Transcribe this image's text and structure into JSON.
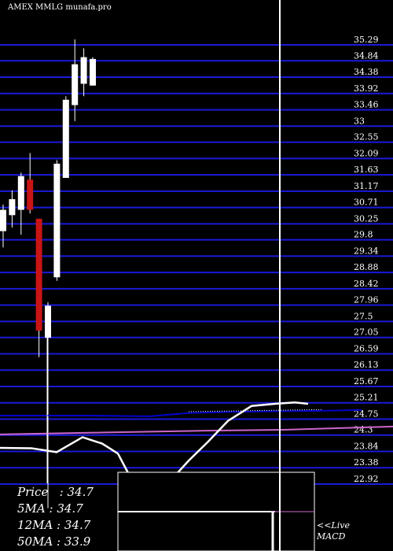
{
  "header": {
    "title": "AMEX  MMLG munafa.pro"
  },
  "chart_data": {
    "type": "candlestick",
    "y_ticks": [
      "35.29",
      "34.84",
      "34.38",
      "33.92",
      "33.46",
      "33",
      "32.55",
      "32.09",
      "31.63",
      "31.17",
      "30.71",
      "30.25",
      "29.8",
      "29.34",
      "28.88",
      "28.42",
      "27.96",
      "27.5",
      "27.05",
      "26.59",
      "26.13",
      "25.67",
      "25.21",
      "24.75",
      "24.3",
      "23.84",
      "23.38",
      "22.92"
    ],
    "ylim": [
      22.92,
      35.29
    ],
    "candles": [
      {
        "o": 29.8,
        "h": 30.55,
        "l": 29.34,
        "c": 30.4,
        "dir": "up"
      },
      {
        "o": 30.25,
        "h": 30.95,
        "l": 29.9,
        "c": 30.7,
        "dir": "up"
      },
      {
        "o": 30.4,
        "h": 31.45,
        "l": 29.7,
        "c": 31.35,
        "dir": "up"
      },
      {
        "o": 31.25,
        "h": 32.0,
        "l": 30.3,
        "c": 30.4,
        "dir": "down"
      },
      {
        "o": 30.15,
        "h": 30.15,
        "l": 26.25,
        "c": 27.0,
        "dir": "down"
      },
      {
        "o": 26.8,
        "h": 27.8,
        "l": 22.0,
        "c": 27.7,
        "dir": "up"
      },
      {
        "o": 28.5,
        "h": 31.8,
        "l": 28.4,
        "c": 31.7,
        "dir": "up"
      },
      {
        "o": 31.3,
        "h": 33.6,
        "l": 31.3,
        "c": 33.5,
        "dir": "up"
      },
      {
        "o": 33.35,
        "h": 35.2,
        "l": 32.9,
        "c": 34.5,
        "dir": "up"
      },
      {
        "o": 33.95,
        "h": 34.95,
        "l": 33.6,
        "c": 34.7,
        "dir": "up"
      },
      {
        "o": 33.9,
        "h": 34.7,
        "l": 33.9,
        "c": 34.65,
        "dir": "up"
      }
    ],
    "ma_lines": [
      {
        "name": "50MA",
        "color": "#0000cc",
        "points": [
          [
            0,
            24.85
          ],
          [
            110,
            24.85
          ],
          [
            190,
            24.83
          ],
          [
            240,
            24.92
          ],
          [
            290,
            24.95
          ],
          [
            350,
            24.97
          ],
          [
            420,
            24.99
          ],
          [
            460,
            25.01
          ]
        ]
      },
      {
        "name": "MA-pink",
        "color": "#cc66cc",
        "points": [
          [
            0,
            24.32
          ],
          [
            100,
            24.36
          ],
          [
            250,
            24.42
          ],
          [
            360,
            24.45
          ],
          [
            500,
            24.54
          ]
        ]
      }
    ],
    "macd_line": {
      "color": "#ffffff",
      "points": [
        [
          0,
          23.94
        ],
        [
          40,
          23.93
        ],
        [
          72,
          23.82
        ],
        [
          105,
          24.24
        ],
        [
          130,
          24.06
        ],
        [
          150,
          23.78
        ],
        [
          165,
          23.15
        ],
        [
          190,
          22.9
        ],
        [
          215,
          22.97
        ],
        [
          240,
          23.58
        ],
        [
          265,
          24.12
        ],
        [
          290,
          24.7
        ],
        [
          320,
          25.12
        ],
        [
          350,
          25.18
        ],
        [
          375,
          25.22
        ],
        [
          392,
          25.18
        ]
      ]
    },
    "price_info": [
      {
        "label": "Price",
        "value": "34.7"
      },
      {
        "label": "5MA",
        "value": "34.7"
      },
      {
        "label": "12MA",
        "value": "34.7"
      },
      {
        "label": "50MA",
        "value": "33.9"
      }
    ],
    "live_label": "<<Live\nMACD",
    "colors": {
      "background": "#000000",
      "grid": "#1a1ad8",
      "up": "#ffffff",
      "down": "#c81414",
      "cursor": "#ffffff"
    }
  }
}
